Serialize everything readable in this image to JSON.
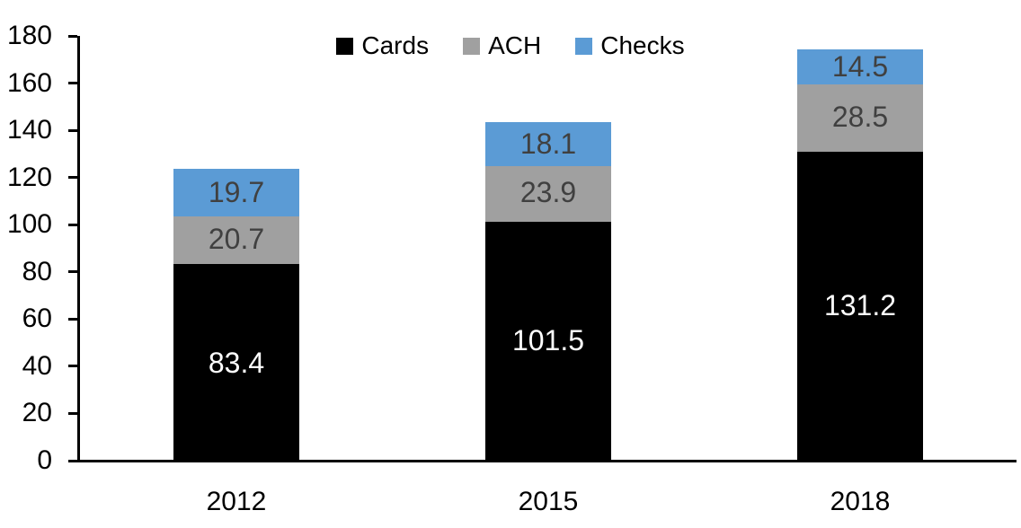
{
  "chart_data": {
    "type": "bar",
    "stacked": true,
    "title": "",
    "categories": [
      "2012",
      "2015",
      "2018"
    ],
    "series": [
      {
        "name": "Cards",
        "color": "#000000",
        "label_color": "#ffffff",
        "values": [
          83.4,
          101.5,
          131.2
        ]
      },
      {
        "name": "ACH",
        "color": "#a0a0a0",
        "label_color": "#404040",
        "values": [
          20.7,
          23.9,
          28.5
        ]
      },
      {
        "name": "Checks",
        "color": "#5b9bd5",
        "label_color": "#404040",
        "values": [
          19.7,
          18.1,
          14.5
        ]
      }
    ],
    "ylim": [
      0,
      180
    ],
    "ytick_step": 20,
    "ytick_labels": [
      "0",
      "20",
      "40",
      "60",
      "80",
      "100",
      "120",
      "140",
      "160",
      "180"
    ],
    "xlabel": "",
    "ylabel": "",
    "legend_position": "top-center",
    "grid": false,
    "axis_color": "#000000",
    "background": "#ffffff",
    "value_decimals": 1
  }
}
